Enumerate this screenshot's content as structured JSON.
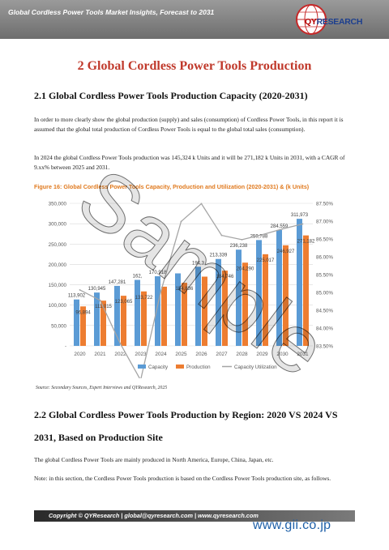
{
  "header": {
    "title": "Global Cordless Power Tools Market Insights, Forecast to 2031",
    "logo_qy": "QY",
    "logo_research": "RESEARCH"
  },
  "chapter": {
    "title": "2  Global Cordless Power Tools Production"
  },
  "section_1": {
    "title": "2.1  Global Cordless Power Tools Production Capacity (2020-2031)",
    "para1": "In order to more clearly show the global production (supply) and sales (consumption) of Cordless Power Tools, in this report it is assumed that the global total production of Cordless Power Tools is equal to the global total sales (consumption).",
    "para2": "In 2024 the global Cordless Power Tools production was 145,324 k Units and it will be 271,182 k Units in 2031, with a CAGR of 9.xx% between 2025 and 2031."
  },
  "figure": {
    "caption": "Figure 16: Global Cordless Power Tools Capacity, Production and Utilization (2020-2031) & (k Units)",
    "source": "Source: Secondary Sources, Expert Interviews and QYResearch, 2025"
  },
  "chart_data": {
    "type": "bar",
    "categories": [
      "2020",
      "2021",
      "2022",
      "2023",
      "2024",
      "2025",
      "2026",
      "2027",
      "2028",
      "2029",
      "2030",
      "2031"
    ],
    "series": [
      {
        "name": "Capacity",
        "type": "bar",
        "color": "#5b9bd5",
        "values": [
          113902,
          130945,
          147281,
          162000,
          170918,
          178000,
          194300,
          213339,
          236238,
          259788,
          284559,
          311973
        ],
        "labels": [
          "113,902",
          "130,945",
          "147,281",
          "162,",
          "170,918",
          "",
          "194,3",
          "213,339",
          "236,238",
          "259,788",
          "284,559",
          "311,973"
        ]
      },
      {
        "name": "Production",
        "type": "bar",
        "color": "#ed7d31",
        "values": [
          96894,
          111015,
          123065,
          133722,
          145324,
          154836,
          170000,
          184746,
          204290,
          225017,
          246927,
          271182
        ],
        "labels": [
          "96,894",
          "111,015",
          "123,065",
          "133,722",
          "",
          "154,836",
          "",
          "184,746",
          "204,290",
          "225,017",
          "246,927",
          "271,182"
        ]
      },
      {
        "name": "Capacity Utilization",
        "type": "line",
        "color": "#a5a5a5",
        "axis": "right",
        "values": [
          85.07,
          84.78,
          83.56,
          82.54,
          85.03,
          86.99,
          87.49,
          86.6,
          86.48,
          86.62,
          86.78,
          86.92
        ]
      }
    ],
    "y_left": {
      "min": 0,
      "max": 350000,
      "ticks": [
        "-",
        "50,000",
        "100,000",
        "150,000",
        "200,000",
        "250,000",
        "300,000",
        "350,000"
      ]
    },
    "y_right": {
      "min": 83.5,
      "max": 87.5,
      "ticks": [
        "83.50%",
        "84.00%",
        "84.50%",
        "85.00%",
        "85.50%",
        "86.00%",
        "86.50%",
        "87.00%",
        "87.50%"
      ]
    },
    "grid": true,
    "legend": "bottom"
  },
  "section_2": {
    "title_line1": "2.2  Global Cordless Power Tools Production by Region: 2020 VS 2024 VS",
    "title_line2": "2031, Based on Production Site",
    "para1": "The global Cordless Power Tools are mainly produced in North America, Europe, China, Japan, etc.",
    "para2": "Note: in this section, the Cordless Power Tools production is based on the Cordless Power Tools production site, as follows."
  },
  "footer": {
    "text": "Copyright © QYResearch | global@qyresearch.com | www.qyresearch.com",
    "site": "www.gii.co.jp"
  },
  "watermark": {
    "text": "Sample"
  }
}
